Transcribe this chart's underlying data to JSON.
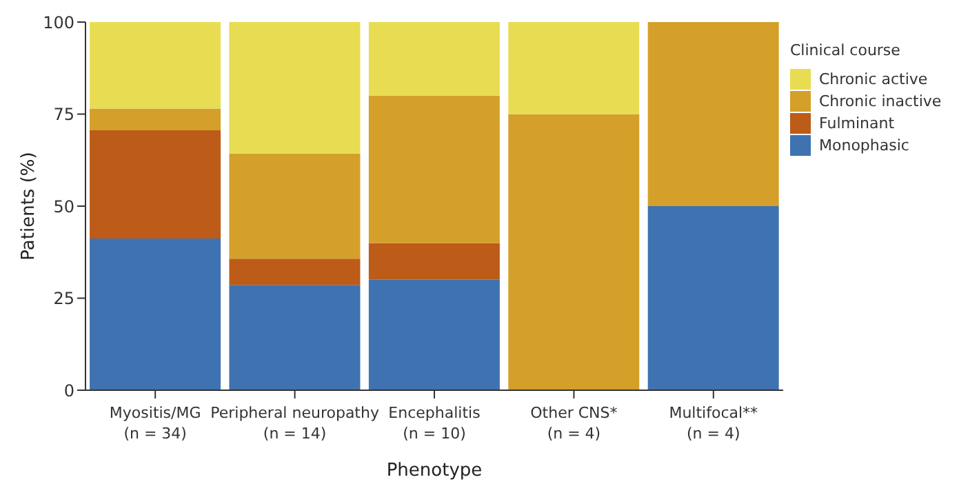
{
  "chart_data": {
    "type": "bar",
    "stacked": true,
    "xlabel": "Phenotype",
    "ylabel": "Patients (%)",
    "legend_title": "Clinical course",
    "legend": "right",
    "grid": false,
    "categories": [
      "Myositis/MG\n(n = 34)",
      "Peripheral neuropathy\n(n = 14)",
      "Encephalitis\n(n = 10)",
      "Other CNS*\n(n = 4)",
      "Multifocal**\n(n = 4)"
    ],
    "ylim": [
      0,
      100
    ],
    "yticks": [
      0,
      25,
      50,
      75,
      100
    ],
    "series": [
      {
        "name": "Monophasic",
        "color": "#3f72b0",
        "values": [
          41.2,
          28.6,
          30,
          0,
          50
        ]
      },
      {
        "name": "Fulminant",
        "color": "#bd5b18",
        "values": [
          29.4,
          7.1,
          10,
          0,
          0
        ]
      },
      {
        "name": "Chronic inactive",
        "color": "#d4a02a",
        "values": [
          5.9,
          28.6,
          40,
          75,
          50
        ]
      },
      {
        "name": "Chronic active",
        "color": "#e8dd52",
        "values": [
          23.5,
          35.7,
          20,
          25,
          0
        ]
      }
    ]
  }
}
